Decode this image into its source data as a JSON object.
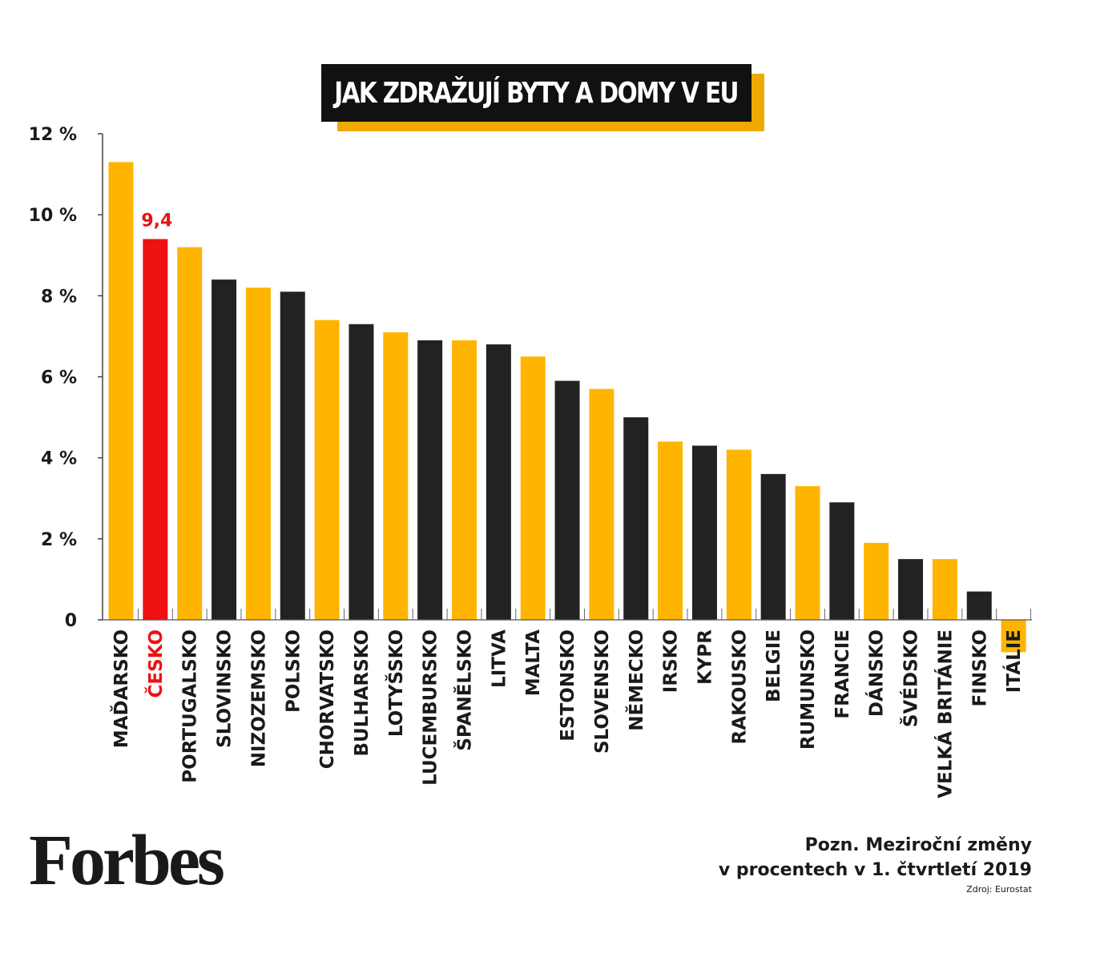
{
  "chart_data": {
    "type": "bar",
    "title": "JAK ZDRAŽUJÍ BYTY A DOMY V EU",
    "categories": [
      "MAĎARSKO",
      "ČESKO",
      "PORTUGALSKO",
      "SLOVINSKO",
      "NIZOZEMSKO",
      "POLSKO",
      "CHORVATSKO",
      "BULHARSKO",
      "LOTYŠSKO",
      "LUCEMBURSKO",
      "ŠPANĚLSKO",
      "LITVA",
      "MALTA",
      "ESTONSKO",
      "SLOVENSKO",
      "NĚMECKO",
      "IRSKO",
      "KYPR",
      "RAKOUSKO",
      "BELGIE",
      "RUMUNSKO",
      "FRANCIE",
      "DÁNSKO",
      "ŠVÉDSKO",
      "VELKÁ BRITÁNIE",
      "FINSKO",
      "ITÁLIE"
    ],
    "values": [
      11.3,
      9.4,
      9.2,
      8.4,
      8.2,
      8.1,
      7.4,
      7.3,
      7.1,
      6.9,
      6.9,
      6.8,
      6.5,
      5.9,
      5.7,
      5.0,
      4.4,
      4.3,
      4.2,
      3.6,
      3.3,
      2.9,
      1.9,
      1.5,
      1.5,
      0.7,
      -0.8
    ],
    "bar_colors": [
      "#ffb400",
      "#ee1111",
      "#ffb400",
      "#222222",
      "#ffb400",
      "#222222",
      "#ffb400",
      "#222222",
      "#ffb400",
      "#222222",
      "#ffb400",
      "#222222",
      "#ffb400",
      "#222222",
      "#ffb400",
      "#222222",
      "#ffb400",
      "#222222",
      "#ffb400",
      "#222222",
      "#ffb400",
      "#222222",
      "#ffb400",
      "#222222",
      "#ffb400",
      "#222222",
      "#ffb400"
    ],
    "highlight_label": "9,4",
    "highlight_index": 1,
    "highlight_color": "#ee1111",
    "ylim": [
      0,
      12
    ],
    "y_ticks": [
      {
        "value": 12,
        "label": "12 %"
      },
      {
        "value": 10,
        "label": "10 %"
      },
      {
        "value": 8,
        "label": "8 %"
      },
      {
        "value": 6,
        "label": "6 %"
      },
      {
        "value": 4,
        "label": "4 %"
      },
      {
        "value": 2,
        "label": "2 %"
      },
      {
        "value": 0,
        "label": "0"
      }
    ],
    "grid": false
  },
  "branding": {
    "logo": "Forbes"
  },
  "note": {
    "line1": "Pozn. Meziroční změny",
    "line2": "v procentech v 1. čtvrtletí 2019",
    "source": "Zdroj: Eurostat"
  },
  "colors": {
    "yellow": "#ffb400",
    "black": "#222222",
    "red": "#ee1111",
    "title_bg": "#111111",
    "title_shadow": "#eeaa00"
  }
}
